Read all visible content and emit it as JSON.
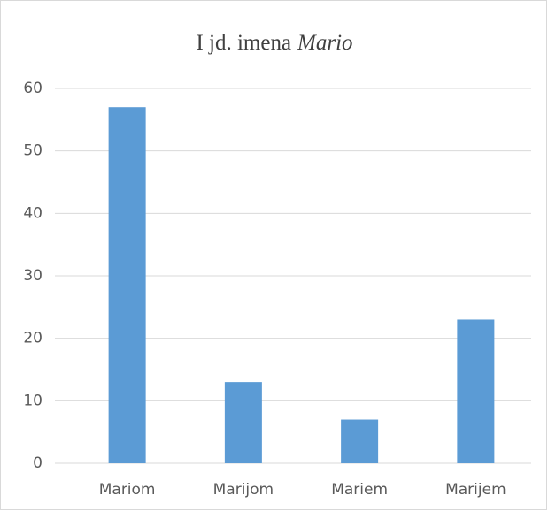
{
  "chart_data": {
    "type": "bar",
    "title": [
      {
        "text": "I jd. imena"
      },
      {
        "text": "Mario",
        "italic": true
      }
    ],
    "categories": [
      "Mariom",
      "Marijom",
      "Mariem",
      "Marijem"
    ],
    "values": [
      57,
      13,
      7,
      23
    ],
    "color": "#5b9bd5",
    "ylim": [
      0,
      60
    ],
    "yticks": [
      0,
      10,
      20,
      30,
      40,
      50,
      60
    ],
    "grid": true
  }
}
